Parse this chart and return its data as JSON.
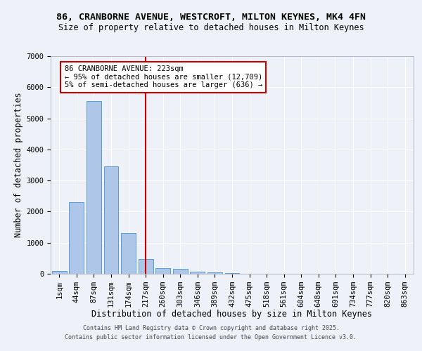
{
  "title_line1": "86, CRANBORNE AVENUE, WESTCROFT, MILTON KEYNES, MK4 4FN",
  "title_line2": "Size of property relative to detached houses in Milton Keynes",
  "xlabel": "Distribution of detached houses by size in Milton Keynes",
  "ylabel": "Number of detached properties",
  "categories": [
    "1sqm",
    "44sqm",
    "87sqm",
    "131sqm",
    "174sqm",
    "217sqm",
    "260sqm",
    "303sqm",
    "346sqm",
    "389sqm",
    "432sqm",
    "475sqm",
    "518sqm",
    "561sqm",
    "604sqm",
    "648sqm",
    "691sqm",
    "734sqm",
    "777sqm",
    "820sqm",
    "863sqm"
  ],
  "values": [
    80,
    2300,
    5550,
    3450,
    1320,
    480,
    190,
    150,
    75,
    40,
    15,
    5,
    3,
    2,
    1,
    1,
    1,
    0,
    0,
    0,
    0
  ],
  "bar_color": "#aec6e8",
  "bar_edge_color": "#5b9bd5",
  "vline_x": 5,
  "vline_color": "#cc0000",
  "ylim": [
    0,
    7000
  ],
  "annotation_text": "86 CRANBORNE AVENUE: 223sqm\n← 95% of detached houses are smaller (12,709)\n5% of semi-detached houses are larger (636) →",
  "footnote1": "Contains HM Land Registry data © Crown copyright and database right 2025.",
  "footnote2": "Contains public sector information licensed under the Open Government Licence v3.0.",
  "bg_color": "#eef2f8",
  "title_fontsize": 9.5,
  "subtitle_fontsize": 8.5,
  "axis_label_fontsize": 8.5,
  "tick_fontsize": 7.5,
  "annot_fontsize": 7.5,
  "footnote_fontsize": 6.0
}
